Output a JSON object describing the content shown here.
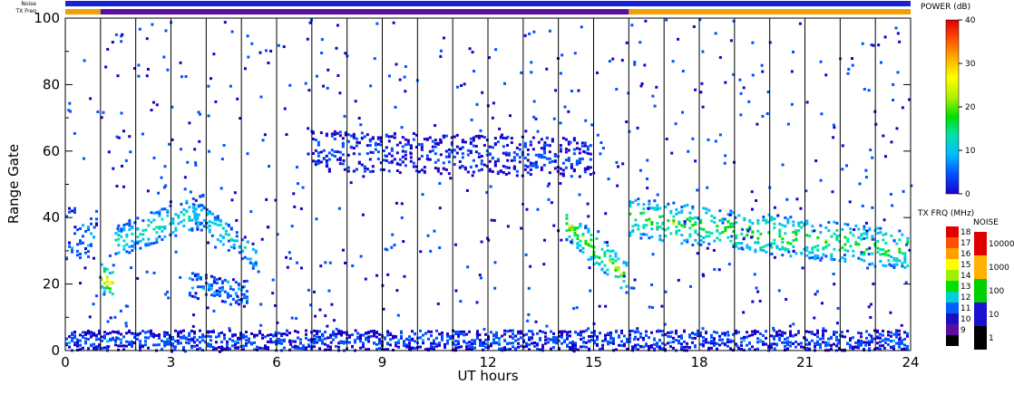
{
  "chart_data": {
    "type": "heatmap",
    "title": "",
    "xlabel": "UT hours",
    "ylabel": "Range Gate",
    "xlim": [
      0,
      24
    ],
    "ylim": [
      0,
      100
    ],
    "x_ticks": [
      "0",
      "3",
      "6",
      "9",
      "12",
      "15",
      "18",
      "21",
      "24"
    ],
    "x_tick_values": [
      0,
      3,
      6,
      9,
      12,
      15,
      18,
      21,
      24
    ],
    "y_ticks": [
      "0",
      "20",
      "40",
      "60",
      "80",
      "100"
    ],
    "y_tick_values": [
      0,
      20,
      40,
      60,
      80,
      100
    ],
    "scan_boundaries_ut": [
      1,
      2,
      3,
      4,
      5,
      6,
      7,
      8,
      9,
      10,
      11,
      12,
      13,
      14,
      15,
      16,
      17,
      18,
      19,
      20,
      21,
      22,
      23
    ],
    "top_strips": {
      "noise_label": "Noise",
      "txfreq_label": "TX Freq",
      "noise_color": "#1a22d6",
      "txfreq_segments": [
        {
          "from": 0,
          "to": 1,
          "color": "#f0a000"
        },
        {
          "from": 1,
          "to": 16,
          "color": "#5a0fa0"
        },
        {
          "from": 16,
          "to": 24,
          "color": "#f0a000"
        }
      ]
    },
    "echo_bands": [
      {
        "name": "ground-scatter 0-1h",
        "ut": [
          0.0,
          1.0
        ],
        "gate_center": [
          35,
          35
        ],
        "width": 8,
        "power_db": 8
      },
      {
        "name": "descending 1h",
        "ut": [
          1.0,
          1.4
        ],
        "gate_center": [
          22,
          20
        ],
        "width": 4,
        "power_db": 25
      },
      {
        "name": "rising band 1.4-4h",
        "ut": [
          1.4,
          4.0
        ],
        "gate_center": [
          33,
          42
        ],
        "width": 5,
        "power_db": 14
      },
      {
        "name": "descending band 3.6-5.5h",
        "ut": [
          3.6,
          5.5
        ],
        "gate_center": [
          42,
          28
        ],
        "width": 4,
        "power_db": 13
      },
      {
        "name": "lower band 3.5-5.2h",
        "ut": [
          3.5,
          5.2
        ],
        "gate_center": [
          20,
          17
        ],
        "width": 4,
        "power_db": 9
      },
      {
        "name": "mid-range patch 7-15h",
        "ut": [
          7.0,
          15.0
        ],
        "gate_center": [
          60,
          58
        ],
        "width": 6,
        "power_db": 5
      },
      {
        "name": "descending 14.2-16h",
        "ut": [
          14.2,
          16.0
        ],
        "gate_center": [
          38,
          22
        ],
        "width": 5,
        "power_db": 20
      },
      {
        "name": "evening band 16-24h",
        "ut": [
          16.0,
          24.0
        ],
        "gate_center": [
          40,
          30
        ],
        "width": 6,
        "power_db": 18
      },
      {
        "name": "near-range clutter",
        "ut": [
          0.0,
          24.0
        ],
        "gate_center": [
          3,
          3
        ],
        "width": 3,
        "power_db": 6
      }
    ]
  },
  "power_colorbar": {
    "title": "POWER (dB)",
    "ticks": [
      "0",
      "10",
      "20",
      "30",
      "40"
    ],
    "tick_values": [
      0,
      10,
      20,
      30,
      40
    ],
    "stops": [
      "#1a00c8",
      "#0050ff",
      "#00b8ff",
      "#00e0b0",
      "#00e000",
      "#b0f000",
      "#ffff00",
      "#ffb000",
      "#ff5000",
      "#e00000"
    ]
  },
  "txfreq_colorbar": {
    "title": "TX FRQ (MHz)",
    "labels": [
      "18",
      "17",
      "16",
      "15",
      "14",
      "13",
      "12",
      "11",
      "10",
      "9"
    ],
    "colors": [
      "#e00000",
      "#ff5000",
      "#ffa000",
      "#ffff00",
      "#a0f000",
      "#00e000",
      "#00d0d0",
      "#0060ff",
      "#1a10c0",
      "#5a0fa0",
      "#000000"
    ]
  },
  "noise_colorbar": {
    "title": "NOISE",
    "labels": [
      "10000",
      "1000",
      "100",
      "10",
      "1"
    ],
    "colors": [
      "#e00000",
      "#ffb000",
      "#00d000",
      "#1a10d0",
      "#000000"
    ]
  }
}
